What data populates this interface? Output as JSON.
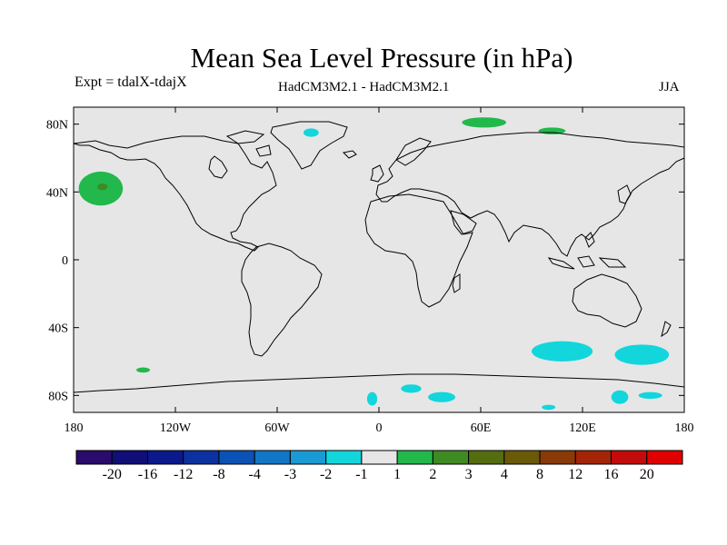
{
  "title": "Mean Sea Level Pressure (in hPa)",
  "experiment": "Expt = tdalX-tdajX",
  "comparison": "HadCM3M2.1 - HadCM3M2.1",
  "season": "JJA",
  "map": {
    "projection": "equirectangular",
    "lon_range": [
      -180,
      180
    ],
    "lat_range": [
      -90,
      90
    ],
    "background_color": "#e6e6e6",
    "coastline_color": "#000000"
  },
  "axes": {
    "lat_ticks": [
      {
        "value": 80,
        "label": "80N"
      },
      {
        "value": 40,
        "label": "40N"
      },
      {
        "value": 0,
        "label": "0"
      },
      {
        "value": -40,
        "label": "40S"
      },
      {
        "value": -80,
        "label": "80S"
      }
    ],
    "lon_ticks": [
      {
        "value": -180,
        "label": "180"
      },
      {
        "value": -120,
        "label": "120W"
      },
      {
        "value": -60,
        "label": "60W"
      },
      {
        "value": 0,
        "label": "0"
      },
      {
        "value": 60,
        "label": "60E"
      },
      {
        "value": 120,
        "label": "120E"
      },
      {
        "value": 180,
        "label": "180"
      }
    ]
  },
  "colorbar": {
    "colors": [
      "#2b0b6b",
      "#100e77",
      "#0a1a8c",
      "#0b32a0",
      "#0b52b4",
      "#1276c6",
      "#1a9ad4",
      "#12d6dc",
      "#e6e6e6",
      "#22b84c",
      "#3f8a23",
      "#556c10",
      "#6a5a08",
      "#8a3a06",
      "#a42408",
      "#c40b0b",
      "#e10000"
    ],
    "labels": [
      "-20",
      "-16",
      "-12",
      "-8",
      "-4",
      "-3",
      "-2",
      "-1",
      "1",
      "2",
      "3",
      "4",
      "8",
      "12",
      "16",
      "20"
    ]
  },
  "anomalies": [
    {
      "name": "north-pacific-positive",
      "color": "#22b84c",
      "lon": -164,
      "lat": 42,
      "rx": 13,
      "ry": 10
    },
    {
      "name": "north-pacific-core",
      "color": "#3f8a23",
      "lon": -163,
      "lat": 43,
      "rx": 3,
      "ry": 2
    },
    {
      "name": "greenland-negative",
      "color": "#12d6dc",
      "lon": -40,
      "lat": 75,
      "rx": 4.5,
      "ry": 2.5
    },
    {
      "name": "siberia-positive",
      "color": "#22b84c",
      "lon": 62,
      "lat": 81,
      "rx": 13,
      "ry": 3
    },
    {
      "name": "east-siberia-positive",
      "color": "#22b84c",
      "lon": 102,
      "lat": 76,
      "rx": 8,
      "ry": 2
    },
    {
      "name": "south-pacific-positive",
      "color": "#22b84c",
      "lon": -139,
      "lat": -65,
      "rx": 4,
      "ry": 1.5
    },
    {
      "name": "south-indian-negative-1",
      "color": "#12d6dc",
      "lon": 108,
      "lat": -54,
      "rx": 18,
      "ry": 6
    },
    {
      "name": "south-indian-negative-2",
      "color": "#12d6dc",
      "lon": 155,
      "lat": -56,
      "rx": 16,
      "ry": 6
    },
    {
      "name": "antarctic-negative-1",
      "color": "#12d6dc",
      "lon": -4,
      "lat": -82,
      "rx": 3,
      "ry": 4
    },
    {
      "name": "antarctic-negative-2",
      "color": "#12d6dc",
      "lon": 19,
      "lat": -76,
      "rx": 6,
      "ry": 2.5
    },
    {
      "name": "antarctic-negative-3",
      "color": "#12d6dc",
      "lon": 37,
      "lat": -81,
      "rx": 8,
      "ry": 3
    },
    {
      "name": "antarctic-negative-4",
      "color": "#12d6dc",
      "lon": 100,
      "lat": -87,
      "rx": 4,
      "ry": 1.5
    },
    {
      "name": "antarctic-negative-5",
      "color": "#12d6dc",
      "lon": 142,
      "lat": -81,
      "rx": 5,
      "ry": 4
    },
    {
      "name": "antarctic-negative-6",
      "color": "#12d6dc",
      "lon": 160,
      "lat": -80,
      "rx": 7,
      "ry": 2
    }
  ]
}
